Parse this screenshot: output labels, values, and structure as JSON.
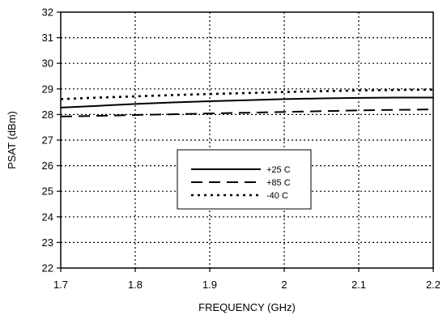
{
  "chart_data": {
    "type": "line",
    "xlabel": "FREQUENCY (GHz)",
    "ylabel": "PSAT (dBm)",
    "xlim": [
      1.7,
      2.2
    ],
    "ylim": [
      22,
      32
    ],
    "x_ticks": [
      1.7,
      1.8,
      1.9,
      2.0,
      2.1,
      2.2
    ],
    "x_tick_labels": [
      "1.7",
      "1.8",
      "1.9",
      "2",
      "2.1",
      "2.2"
    ],
    "y_ticks": [
      22,
      23,
      24,
      25,
      26,
      27,
      28,
      29,
      30,
      31,
      32
    ],
    "y_tick_labels": [
      "22",
      "23",
      "24",
      "25",
      "26",
      "27",
      "28",
      "29",
      "30",
      "31",
      "32"
    ],
    "grid": true,
    "grid_style": "dotted",
    "legend_position": "center",
    "series": [
      {
        "name": "+25 C",
        "style": "solid",
        "color": "#000000",
        "x": [
          1.7,
          1.75,
          1.8,
          1.85,
          1.9,
          1.95,
          2.0,
          2.05,
          2.1,
          2.15,
          2.2
        ],
        "y": [
          28.27,
          28.34,
          28.41,
          28.47,
          28.52,
          28.56,
          28.6,
          28.63,
          28.65,
          28.66,
          28.66
        ]
      },
      {
        "name": "+85 C",
        "style": "dashed",
        "color": "#000000",
        "x": [
          1.7,
          1.75,
          1.8,
          1.85,
          1.9,
          1.95,
          2.0,
          2.05,
          2.1,
          2.15,
          2.2
        ],
        "y": [
          27.92,
          27.95,
          27.98,
          28.01,
          28.04,
          28.07,
          28.1,
          28.13,
          28.16,
          28.18,
          28.2
        ]
      },
      {
        "name": "-40 C",
        "style": "dotted",
        "color": "#000000",
        "x": [
          1.7,
          1.75,
          1.8,
          1.85,
          1.9,
          1.95,
          2.0,
          2.05,
          2.1,
          2.15,
          2.2
        ],
        "y": [
          28.6,
          28.66,
          28.71,
          28.76,
          28.8,
          28.84,
          28.88,
          28.91,
          28.94,
          28.96,
          28.97
        ]
      }
    ]
  }
}
